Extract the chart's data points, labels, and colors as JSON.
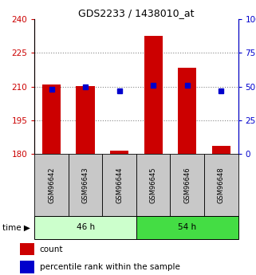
{
  "title": "GDS2233 / 1438010_at",
  "samples": [
    "GSM96642",
    "GSM96643",
    "GSM96644",
    "GSM96645",
    "GSM96646",
    "GSM96648"
  ],
  "count_values": [
    211.0,
    210.2,
    181.5,
    232.5,
    218.5,
    183.5
  ],
  "percentile_values": [
    48.0,
    50.0,
    47.0,
    51.0,
    51.0,
    47.0
  ],
  "count_baseline": 180,
  "ylim_left": [
    180,
    240
  ],
  "ylim_right": [
    0,
    100
  ],
  "yticks_left": [
    180,
    195,
    210,
    225,
    240
  ],
  "yticks_right": [
    0,
    25,
    50,
    75,
    100
  ],
  "bar_color": "#cc0000",
  "dot_color": "#0000cc",
  "bar_width": 0.55,
  "group_46_color": "#ccffcc",
  "group_54_color": "#44dd44",
  "grid_color": "#888888",
  "legend_count_color": "#cc0000",
  "legend_pct_color": "#0000cc",
  "legend_count_label": "count",
  "legend_pct_label": "percentile rank within the sample",
  "gridlines_at": [
    195,
    210,
    225
  ]
}
